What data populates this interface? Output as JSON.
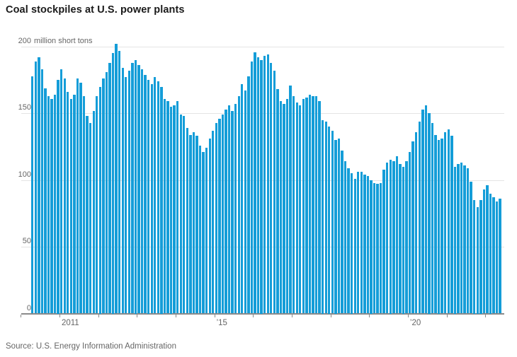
{
  "page": {
    "title": "Coal stockpiles at U.S. power plants",
    "source": "Source: U.S. Energy Information Administration"
  },
  "colors": {
    "bar": "#149dd8",
    "gridline": "#e4e4e4",
    "axis": "#8a8a8a",
    "title_text": "#1a1a1a",
    "label_text": "#666666"
  },
  "chart_data": {
    "type": "bar",
    "title": "Coal stockpiles at U.S. power plants",
    "unit_label": "million short tons",
    "ylabel": "million short tons",
    "ylim": [
      0,
      200
    ],
    "y_ticks": [
      0,
      50,
      100,
      150,
      200
    ],
    "grid": true,
    "frequency": "monthly",
    "start_month": "2010-04",
    "end_month": "2022-05",
    "x_axis_years": [
      2010,
      2011,
      2012,
      2013,
      2014,
      2015,
      2016,
      2017,
      2018,
      2019,
      2020,
      2021,
      2022
    ],
    "x_tick_labels": [
      {
        "year": 2011,
        "label": "2011"
      },
      {
        "year": 2015,
        "label": "’15"
      },
      {
        "year": 2020,
        "label": "’20"
      }
    ],
    "source": "U.S. Energy Information Administration",
    "values": [
      178,
      189,
      192,
      183,
      169,
      163,
      161,
      164,
      175,
      183,
      176,
      166,
      161,
      164,
      176,
      173,
      163,
      148,
      143,
      152,
      163,
      170,
      176,
      181,
      188,
      195,
      202,
      197,
      184,
      177,
      182,
      188,
      190,
      186,
      183,
      179,
      175,
      172,
      177,
      174,
      170,
      161,
      159,
      155,
      156,
      159,
      149,
      148,
      139,
      134,
      136,
      133,
      126,
      121,
      124,
      131,
      137,
      143,
      146,
      149,
      153,
      156,
      152,
      157,
      163,
      172,
      167,
      178,
      189,
      196,
      192,
      190,
      193,
      194,
      188,
      182,
      168,
      159,
      157,
      161,
      171,
      163,
      158,
      156,
      161,
      162,
      164,
      163,
      163,
      159,
      145,
      144,
      140,
      137,
      130,
      131,
      122,
      114,
      109,
      105,
      101,
      106,
      106,
      104,
      103,
      100,
      98,
      97,
      98,
      108,
      113,
      115,
      114,
      118,
      112,
      110,
      114,
      121,
      129,
      136,
      144,
      153,
      156,
      150,
      143,
      134,
      130,
      131,
      136,
      138,
      133,
      110,
      112,
      113,
      111,
      109,
      99,
      85,
      80,
      85,
      93,
      96,
      90,
      87,
      84,
      86
    ]
  }
}
